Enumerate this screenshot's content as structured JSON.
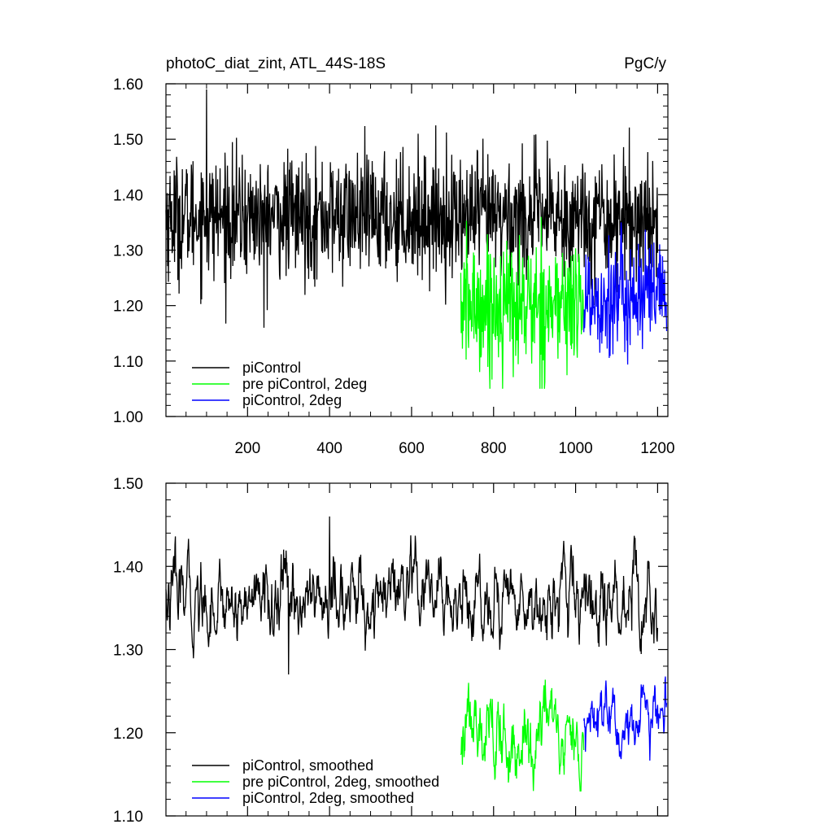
{
  "chart_data": [
    {
      "type": "line",
      "title": "photoC_diat_zint, ATL_44S-18S",
      "units": "PgC/y",
      "xlabel": "",
      "ylabel": "",
      "xlim": [
        1,
        1225
      ],
      "ylim": [
        1.0,
        1.6
      ],
      "xticks": [
        200,
        400,
        600,
        800,
        1000,
        1200
      ],
      "xtick_labels": [
        "200",
        "400",
        "600",
        "800",
        "1000",
        "1200"
      ],
      "yticks": [
        1.0,
        1.1,
        1.2,
        1.3,
        1.4,
        1.5,
        1.6
      ],
      "ytick_labels": [
        "1.00",
        "1.10",
        "1.20",
        "1.30",
        "1.40",
        "1.50",
        "1.60"
      ],
      "grid": false,
      "legend_position": "bottom-left",
      "series": [
        {
          "name": "piControl",
          "color": "#000000",
          "x_range": [
            1,
            1200
          ],
          "mean": 1.36,
          "amplitude": 0.055,
          "min": 1.16,
          "max": 1.59,
          "min_x": 240,
          "max_x": 100
        },
        {
          "name": "pre piControl, 2deg",
          "color": "#00ff00",
          "x_range": [
            720,
            1020
          ],
          "mean": 1.2,
          "amplitude": 0.06,
          "min": 1.05,
          "max": 1.36
        },
        {
          "name": "piControl, 2deg",
          "color": "#0000ff",
          "x_range": [
            1020,
            1222
          ],
          "mean": 1.215,
          "amplitude": 0.055,
          "min": 1.09,
          "max": 1.35
        }
      ]
    },
    {
      "type": "line",
      "title": "",
      "xlabel": "",
      "ylabel": "",
      "xlim": [
        1,
        1225
      ],
      "ylim": [
        1.1,
        1.5
      ],
      "xticks": [
        200,
        400,
        600,
        800,
        1000,
        1200
      ],
      "yticks": [
        1.1,
        1.2,
        1.3,
        1.4,
        1.5
      ],
      "ytick_labels": [
        "1.10",
        "1.20",
        "1.30",
        "1.40",
        "1.50"
      ],
      "grid": false,
      "legend_position": "bottom-left",
      "series": [
        {
          "name": "piControl, smoothed",
          "color": "#000000",
          "x_range": [
            1,
            1200
          ],
          "mean": 1.36,
          "amplitude": 0.025,
          "min": 1.27,
          "max": 1.46,
          "min_x": 300,
          "max_x": 400
        },
        {
          "name": "pre piControl, 2deg, smoothed",
          "color": "#00ff00",
          "x_range": [
            720,
            1020
          ],
          "mean": 1.195,
          "amplitude": 0.025,
          "min": 1.13,
          "max": 1.27
        },
        {
          "name": "piControl, 2deg, smoothed",
          "color": "#0000ff",
          "x_range": [
            1020,
            1222
          ],
          "mean": 1.215,
          "amplitude": 0.022,
          "min": 1.155,
          "max": 1.275
        }
      ]
    }
  ]
}
